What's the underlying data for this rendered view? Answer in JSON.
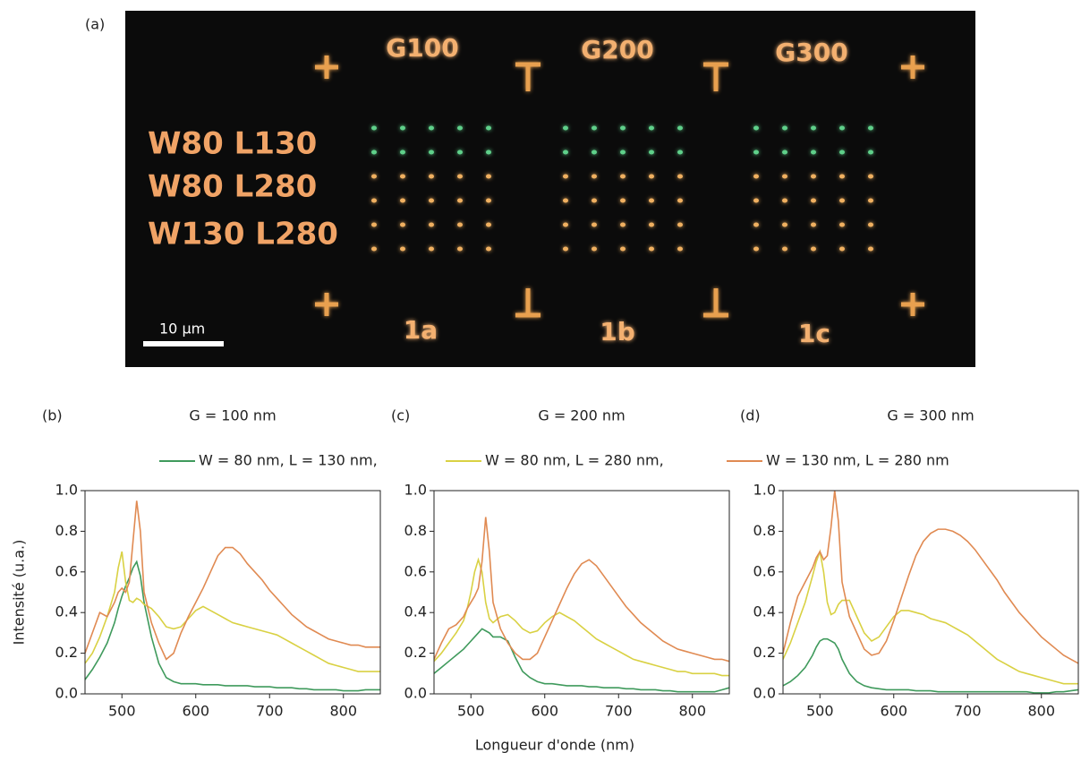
{
  "panel_a": {
    "label": "(a)",
    "group_labels": [
      "G100",
      "G200",
      "G300"
    ],
    "row_labels": [
      "W80 L130",
      "W80 L280",
      "W130 L280"
    ],
    "scale_bar": "10 μm",
    "sample_labels": [
      "1a",
      "1b",
      "1c"
    ]
  },
  "chart_data": [
    {
      "type": "line",
      "panel": "(b)",
      "title": "G = 100 nm",
      "ylabel": "Intensité (u.a.)",
      "x": [
        450,
        460,
        470,
        480,
        490,
        495,
        500,
        505,
        510,
        515,
        520,
        525,
        530,
        540,
        550,
        560,
        570,
        580,
        590,
        600,
        610,
        620,
        630,
        640,
        650,
        660,
        670,
        680,
        690,
        700,
        710,
        720,
        730,
        740,
        750,
        760,
        770,
        780,
        790,
        800,
        810,
        820,
        830,
        840,
        850
      ],
      "xlim": [
        450,
        850
      ],
      "ylim": [
        0,
        1
      ],
      "xticks": [
        500,
        600,
        700,
        800
      ],
      "yticks": [
        {
          "value": 0,
          "label": "0.0"
        },
        0.2,
        0.4,
        0.6,
        0.8,
        {
          "value": 1,
          "label": "1.0"
        }
      ],
      "series": [
        {
          "name": "W = 80 nm, L = 130 nm,",
          "color": "#3f9a5c",
          "values": [
            0.07,
            0.12,
            0.18,
            0.25,
            0.35,
            0.42,
            0.48,
            0.53,
            0.57,
            0.62,
            0.65,
            0.58,
            0.45,
            0.28,
            0.15,
            0.08,
            0.06,
            0.05,
            0.05,
            0.05,
            0.045,
            0.045,
            0.045,
            0.04,
            0.04,
            0.04,
            0.04,
            0.035,
            0.035,
            0.035,
            0.03,
            0.03,
            0.03,
            0.025,
            0.025,
            0.02,
            0.02,
            0.02,
            0.02,
            0.015,
            0.015,
            0.015,
            0.02,
            0.02,
            0.02
          ]
        },
        {
          "name": "W = 80 nm, L = 280 nm,",
          "color": "#d9d143",
          "values": [
            0.15,
            0.2,
            0.28,
            0.38,
            0.5,
            0.62,
            0.7,
            0.55,
            0.46,
            0.45,
            0.47,
            0.46,
            0.44,
            0.42,
            0.38,
            0.33,
            0.32,
            0.33,
            0.37,
            0.41,
            0.43,
            0.41,
            0.39,
            0.37,
            0.35,
            0.34,
            0.33,
            0.32,
            0.31,
            0.3,
            0.29,
            0.27,
            0.25,
            0.23,
            0.21,
            0.19,
            0.17,
            0.15,
            0.14,
            0.13,
            0.12,
            0.11,
            0.11,
            0.11,
            0.11
          ]
        },
        {
          "name": "W = 130 nm, L = 280 nm",
          "color": "#e08a52",
          "values": [
            0.2,
            0.3,
            0.4,
            0.38,
            0.45,
            0.5,
            0.52,
            0.5,
            0.55,
            0.75,
            0.95,
            0.8,
            0.5,
            0.35,
            0.25,
            0.17,
            0.2,
            0.3,
            0.38,
            0.45,
            0.52,
            0.6,
            0.68,
            0.72,
            0.72,
            0.69,
            0.64,
            0.6,
            0.56,
            0.51,
            0.47,
            0.43,
            0.39,
            0.36,
            0.33,
            0.31,
            0.29,
            0.27,
            0.26,
            0.25,
            0.24,
            0.24,
            0.23,
            0.23,
            0.23
          ]
        }
      ]
    },
    {
      "type": "line",
      "panel": "(c)",
      "title": "G = 200 nm",
      "xlabel": "Longueur d'onde (nm)",
      "x": [
        450,
        460,
        470,
        480,
        490,
        495,
        500,
        505,
        510,
        515,
        520,
        525,
        530,
        540,
        550,
        560,
        570,
        580,
        590,
        600,
        610,
        620,
        630,
        640,
        650,
        660,
        670,
        680,
        690,
        700,
        710,
        720,
        730,
        740,
        750,
        760,
        770,
        780,
        790,
        800,
        810,
        820,
        830,
        840,
        850
      ],
      "xlim": [
        450,
        850
      ],
      "ylim": [
        0,
        1
      ],
      "xticks": [
        500,
        600,
        700,
        800
      ],
      "yticks": [
        {
          "value": 0,
          "label": "0.0"
        },
        0.2,
        0.4,
        0.6,
        0.8,
        {
          "value": 1,
          "label": "1.0"
        }
      ],
      "series": [
        {
          "color": "#3f9a5c",
          "values": [
            0.1,
            0.13,
            0.16,
            0.19,
            0.22,
            0.24,
            0.26,
            0.28,
            0.3,
            0.32,
            0.31,
            0.3,
            0.28,
            0.28,
            0.26,
            0.18,
            0.11,
            0.08,
            0.06,
            0.05,
            0.05,
            0.045,
            0.04,
            0.04,
            0.04,
            0.035,
            0.035,
            0.03,
            0.03,
            0.03,
            0.025,
            0.025,
            0.02,
            0.02,
            0.02,
            0.015,
            0.015,
            0.01,
            0.01,
            0.01,
            0.01,
            0.01,
            0.01,
            0.02,
            0.03
          ]
        },
        {
          "color": "#d9d143",
          "values": [
            0.16,
            0.2,
            0.25,
            0.3,
            0.36,
            0.42,
            0.5,
            0.6,
            0.66,
            0.6,
            0.45,
            0.37,
            0.35,
            0.38,
            0.39,
            0.36,
            0.32,
            0.3,
            0.31,
            0.35,
            0.38,
            0.4,
            0.38,
            0.36,
            0.33,
            0.3,
            0.27,
            0.25,
            0.23,
            0.21,
            0.19,
            0.17,
            0.16,
            0.15,
            0.14,
            0.13,
            0.12,
            0.11,
            0.11,
            0.1,
            0.1,
            0.1,
            0.1,
            0.09,
            0.09
          ]
        },
        {
          "color": "#e08a52",
          "values": [
            0.17,
            0.25,
            0.32,
            0.34,
            0.38,
            0.42,
            0.45,
            0.48,
            0.52,
            0.65,
            0.87,
            0.7,
            0.45,
            0.32,
            0.25,
            0.2,
            0.17,
            0.17,
            0.2,
            0.28,
            0.36,
            0.44,
            0.52,
            0.59,
            0.64,
            0.66,
            0.63,
            0.58,
            0.53,
            0.48,
            0.43,
            0.39,
            0.35,
            0.32,
            0.29,
            0.26,
            0.24,
            0.22,
            0.21,
            0.2,
            0.19,
            0.18,
            0.17,
            0.17,
            0.16
          ]
        }
      ]
    },
    {
      "type": "line",
      "panel": "(d)",
      "title": "G = 300 nm",
      "x": [
        450,
        460,
        470,
        480,
        490,
        495,
        500,
        505,
        510,
        515,
        520,
        525,
        530,
        540,
        550,
        560,
        570,
        580,
        590,
        600,
        610,
        620,
        630,
        640,
        650,
        660,
        670,
        680,
        690,
        700,
        710,
        720,
        730,
        740,
        750,
        760,
        770,
        780,
        790,
        800,
        810,
        820,
        830,
        840,
        850
      ],
      "xlim": [
        450,
        850
      ],
      "ylim": [
        0,
        1
      ],
      "xticks": [
        500,
        600,
        700,
        800
      ],
      "yticks": [
        {
          "value": 0,
          "label": "0.0"
        },
        0.2,
        0.4,
        0.6,
        0.8,
        {
          "value": 1,
          "label": "1.0"
        }
      ],
      "series": [
        {
          "color": "#3f9a5c",
          "values": [
            0.04,
            0.06,
            0.09,
            0.13,
            0.19,
            0.23,
            0.26,
            0.27,
            0.27,
            0.26,
            0.25,
            0.22,
            0.17,
            0.1,
            0.06,
            0.04,
            0.03,
            0.025,
            0.02,
            0.02,
            0.02,
            0.02,
            0.015,
            0.015,
            0.015,
            0.01,
            0.01,
            0.01,
            0.01,
            0.01,
            0.01,
            0.01,
            0.01,
            0.01,
            0.01,
            0.01,
            0.01,
            0.01,
            0.005,
            0.005,
            0.005,
            0.01,
            0.01,
            0.015,
            0.02
          ]
        },
        {
          "color": "#d9d143",
          "values": [
            0.17,
            0.25,
            0.35,
            0.45,
            0.58,
            0.65,
            0.7,
            0.6,
            0.45,
            0.39,
            0.4,
            0.44,
            0.46,
            0.46,
            0.38,
            0.3,
            0.26,
            0.28,
            0.33,
            0.38,
            0.41,
            0.41,
            0.4,
            0.39,
            0.37,
            0.36,
            0.35,
            0.33,
            0.31,
            0.29,
            0.26,
            0.23,
            0.2,
            0.17,
            0.15,
            0.13,
            0.11,
            0.1,
            0.09,
            0.08,
            0.07,
            0.06,
            0.05,
            0.05,
            0.05
          ]
        },
        {
          "color": "#e08a52",
          "values": [
            0.2,
            0.35,
            0.48,
            0.55,
            0.62,
            0.67,
            0.7,
            0.66,
            0.68,
            0.82,
            1.0,
            0.85,
            0.55,
            0.38,
            0.3,
            0.22,
            0.19,
            0.2,
            0.26,
            0.36,
            0.47,
            0.58,
            0.68,
            0.75,
            0.79,
            0.81,
            0.81,
            0.8,
            0.78,
            0.75,
            0.71,
            0.66,
            0.61,
            0.56,
            0.5,
            0.45,
            0.4,
            0.36,
            0.32,
            0.28,
            0.25,
            0.22,
            0.19,
            0.17,
            0.15
          ]
        }
      ]
    }
  ]
}
